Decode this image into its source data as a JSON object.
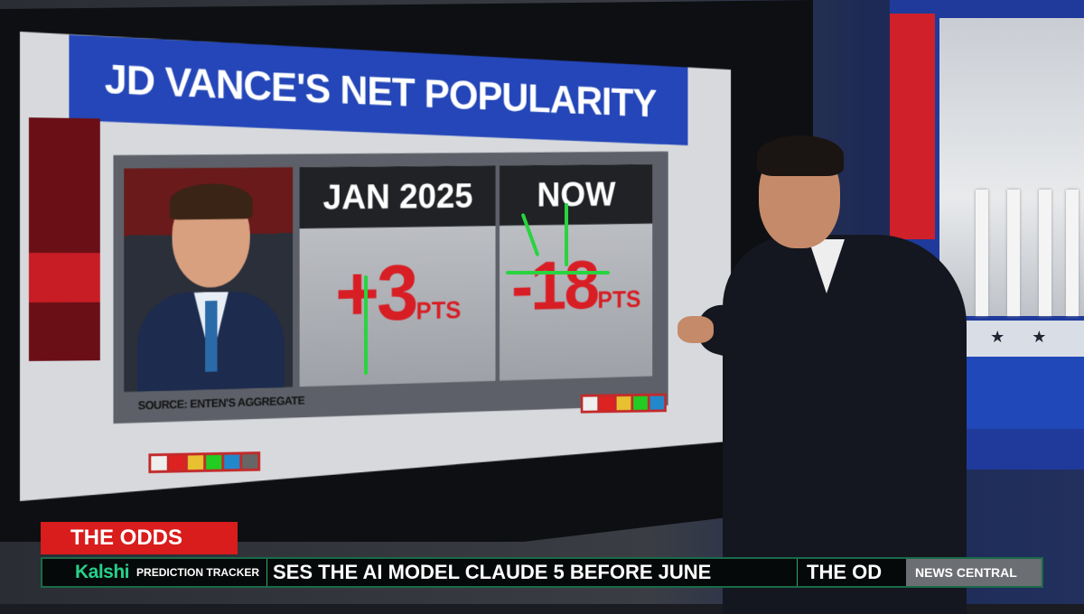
{
  "graphic": {
    "title": "JD VANCE'S NET POPULARITY",
    "columns": [
      {
        "header": "JAN 2025",
        "value": "+3",
        "unit": "PTS"
      },
      {
        "header": "NOW",
        "value": "-18",
        "unit": "PTS"
      }
    ],
    "source": "SOURCE: ENTEN'S AGGREGATE"
  },
  "lower_third": {
    "segment": "THE ODDS",
    "ticker_brand": "Kalshi",
    "ticker_label": "PREDICTION TRACKER",
    "ticker_text": "SES THE AI MODEL CLAUDE 5 BEFORE JUNE",
    "ticker_next": "THE OD",
    "show_name": "NEWS CENTRAL"
  },
  "colors": {
    "headline_blue": "#2446b8",
    "value_red": "#d81e25",
    "kalshi_green": "#28d08a",
    "odds_red": "#d91c1c",
    "annotation_green": "#28d43f"
  }
}
